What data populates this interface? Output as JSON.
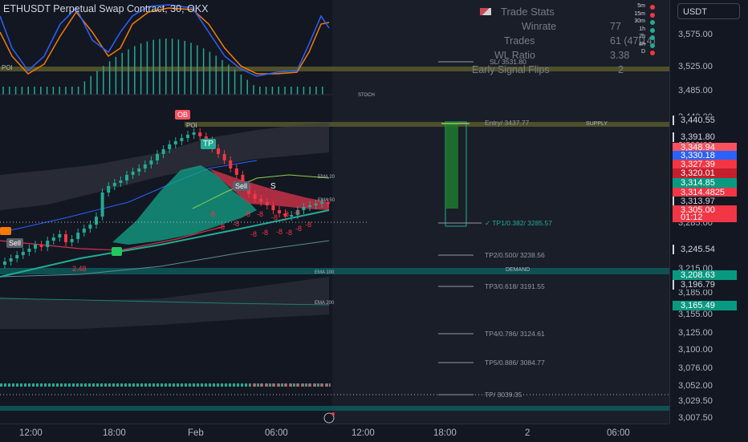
{
  "header": {
    "symbol_title": "ETHUSDT Perpetual Swap Contract, 30, OKX",
    "currency": "USDT"
  },
  "trade_stats": {
    "title": "Trade Stats",
    "winrate_label": "Winrate",
    "winrate_value": "77",
    "trades_label": "Trades",
    "trades_value": "61 (47|14)",
    "wl_label": "WL Ratio",
    "wl_value": "3.38",
    "flips_label": "Early Signal Flips",
    "flips_value": "2"
  },
  "timeframes": [
    {
      "label": "5m",
      "color": "#f23645"
    },
    {
      "label": "15m",
      "color": "#f23645"
    },
    {
      "label": "30m",
      "color": "#22ab94"
    },
    {
      "label": "1h",
      "color": "#22ab94"
    },
    {
      "label": "2h",
      "color": "#22ab94"
    },
    {
      "label": "4h",
      "color": "#22ab94"
    },
    {
      "label": "D",
      "color": "#f23645"
    }
  ],
  "price_axis": {
    "ticks": [
      "3,575.00",
      "3,525.00",
      "3,485.00",
      "3,440.00",
      "3,395.00",
      "3,355.00",
      "3,285.00",
      "3,245.00",
      "3,215.00",
      "3,185.00",
      "3,155.00",
      "3,125.00",
      "3,100.00",
      "3,076.00",
      "3,052.00",
      "3,029.50",
      "3,007.50"
    ],
    "badges": [
      {
        "text": "3,440.55",
        "bg": "#131722",
        "fg": "#d1d4dc",
        "border": "#d1d4dc"
      },
      {
        "text": "3,391.80",
        "bg": "#131722",
        "fg": "#d1d4dc",
        "border": "#d1d4dc"
      },
      {
        "text": "3,348.94",
        "bg": "#f7525f",
        "fg": "#ffffff",
        "border": "#f7525f"
      },
      {
        "text": "3,330.18",
        "bg": "#2962ff",
        "fg": "#ffffff",
        "border": "#2962ff"
      },
      {
        "text": "3,327.39",
        "bg": "#f23645",
        "fg": "#ffffff",
        "border": "#f23645"
      },
      {
        "text": "3,320.01",
        "bg": "#c41f2d",
        "fg": "#ffffff",
        "border": "#c41f2d"
      },
      {
        "text": "3,314.85",
        "bg": "#089981",
        "fg": "#ffffff",
        "border": "#089981"
      },
      {
        "text": "3,314.4825",
        "bg": "#f23645",
        "fg": "#ffffff",
        "border": "#f23645"
      },
      {
        "text": "3,313.97",
        "bg": "#131722",
        "fg": "#d1d4dc",
        "border": "#d1d4dc"
      },
      {
        "text": "3,305.00",
        "bg": "#f23645",
        "fg": "#ffffff",
        "border": "#f23645"
      },
      {
        "text": "01:12",
        "bg": "#f23645",
        "fg": "#ffffff",
        "border": "#f23645"
      },
      {
        "text": "3,245.54",
        "bg": "#131722",
        "fg": "#d1d4dc",
        "border": "#d1d4dc"
      },
      {
        "text": "3,208.63",
        "bg": "#089981",
        "fg": "#ffffff",
        "border": "#089981"
      },
      {
        "text": "3,196.79",
        "bg": "#131722",
        "fg": "#d1d4dc",
        "border": "#d1d4dc"
      },
      {
        "text": "3,165.49",
        "bg": "#089981",
        "fg": "#ffffff",
        "border": "#089981"
      }
    ]
  },
  "time_axis": {
    "ticks": [
      "12:00",
      "18:00",
      "Feb",
      "06:00",
      "12:00",
      "18:00",
      "2",
      "06:00"
    ]
  },
  "trade_levels": {
    "sl": "SL/   3531.80",
    "entry": "Entry/ 3437.77",
    "tp1": "✓ TP1/0.382/ 3285.57",
    "tp2": "TP2/0.500/ 3238.56",
    "tp3": "TP3/0.618/ 3191.55",
    "tp4": "TP4/0.786/ 3124.61",
    "tp5": "TP5/0.886/ 3084.77",
    "tp": "TP/ 3039.35"
  },
  "chart_labels": {
    "poi_top": "POI",
    "poi_mid": "POI",
    "stoch": "STOCH",
    "supply": "SUPPLY",
    "demand": "DEMAND",
    "ema20": "EMA 20",
    "ema50": "EMA 50",
    "ema100": "EMA 100",
    "ema200": "EMA 200",
    "ob": "OB",
    "tp_marker": "TP",
    "sell_marker": "Sell",
    "sell_left": "Sell",
    "s_marker": "S",
    "num_248": "2.48"
  },
  "colors": {
    "background": "#131722",
    "future_zone": "#1a1e29",
    "bull": "#22ab94",
    "bear": "#f23645",
    "supply_band": "#5a5b2a",
    "demand_band": "#0e5a5a"
  }
}
